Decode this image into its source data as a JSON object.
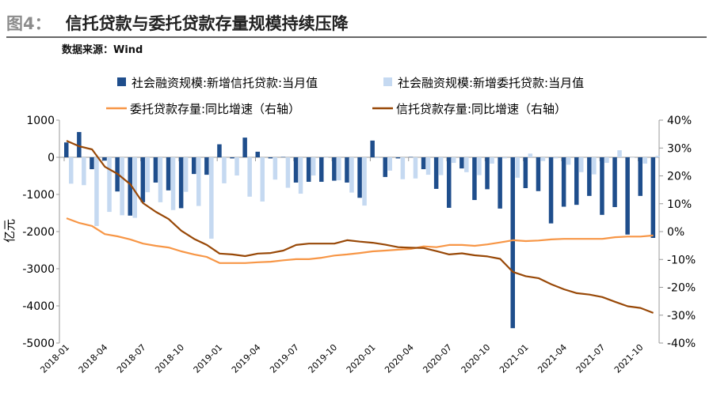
{
  "header": {
    "figure_label": "图4：",
    "title": "信托贷款与委托贷款存量规模持续压降",
    "source": "数据来源：Wind"
  },
  "chart_data": {
    "type": "bar+line",
    "categories": [
      "2018-01",
      "2018-02",
      "2018-03",
      "2018-04",
      "2018-05",
      "2018-06",
      "2018-07",
      "2018-08",
      "2018-09",
      "2018-10",
      "2018-11",
      "2018-12",
      "2019-01",
      "2019-02",
      "2019-03",
      "2019-04",
      "2019-05",
      "2019-06",
      "2019-07",
      "2019-08",
      "2019-09",
      "2019-10",
      "2019-11",
      "2019-12",
      "2020-01",
      "2020-02",
      "2020-03",
      "2020-04",
      "2020-05",
      "2020-06",
      "2020-07",
      "2020-08",
      "2020-09",
      "2020-10",
      "2020-11",
      "2020-12",
      "2021-01",
      "2021-02",
      "2021-03",
      "2021-04",
      "2021-05",
      "2021-06",
      "2021-07",
      "2021-08",
      "2021-09",
      "2021-10",
      "2021-11"
    ],
    "x_tick_labels": [
      "2018-01",
      "2018-04",
      "2018-07",
      "2018-10",
      "2019-01",
      "2019-04",
      "2019-07",
      "2019-10",
      "2020-01",
      "2020-04",
      "2020-07",
      "2020-10",
      "2021-01",
      "2021-04",
      "2021-07",
      "2021-10"
    ],
    "left_axis": {
      "label": "亿元",
      "range": [
        -5000,
        1000
      ],
      "ticks": [
        "1000",
        "0",
        "-1000",
        "-2000",
        "-3000",
        "-4000",
        "-5000"
      ]
    },
    "right_axis": {
      "range": [
        -40,
        40
      ],
      "ticks": [
        "40%",
        "30%",
        "20%",
        "10%",
        "0%",
        "-10%",
        "-20%",
        "-30%",
        "-40%"
      ]
    },
    "legend_position": "top",
    "series": [
      {
        "name": "社会融资规模:新增信托贷款:当月值",
        "type": "bar",
        "axis": "left",
        "color": "#1f4e8c",
        "values": [
          400,
          680,
          -320,
          -90,
          -920,
          -1570,
          -1210,
          -680,
          -890,
          -1370,
          -450,
          -470,
          350,
          -30,
          530,
          150,
          -30,
          10,
          -680,
          -660,
          -660,
          -630,
          -680,
          -1090,
          450,
          -530,
          -30,
          10,
          -320,
          -850,
          -1360,
          -300,
          -1150,
          -860,
          -1380,
          -4600,
          -830,
          -910,
          -1780,
          -1330,
          -1280,
          -1040,
          -1550,
          -1340,
          -2080,
          -1040,
          -2170
        ]
      },
      {
        "name": "社会融资规模:新增委托贷款:当月值",
        "type": "bar",
        "axis": "left",
        "color": "#c5d9f1",
        "values": [
          -710,
          -750,
          -1850,
          -1470,
          -1560,
          -1630,
          -940,
          -1210,
          -1420,
          -930,
          -1310,
          -2190,
          -700,
          -490,
          -1060,
          -1190,
          -600,
          -820,
          -980,
          -490,
          -10,
          -620,
          -950,
          -1300,
          -20,
          -360,
          -590,
          -570,
          -470,
          -480,
          -150,
          -400,
          -480,
          -170,
          -30,
          -550,
          100,
          -100,
          -30,
          -200,
          -400,
          -460,
          -150,
          190,
          0,
          -170,
          40
        ]
      },
      {
        "name": "委托贷款存量:同比增速（右轴）",
        "type": "line",
        "axis": "right",
        "color": "#f79646",
        "values": [
          4.8,
          3.1,
          2.0,
          -0.9,
          -1.7,
          -2.8,
          -4.3,
          -5.1,
          -5.7,
          -7.1,
          -8.2,
          -9.1,
          -11.3,
          -11.3,
          -11.3,
          -11.0,
          -10.8,
          -10.3,
          -9.9,
          -9.9,
          -9.4,
          -8.6,
          -8.2,
          -7.7,
          -7.1,
          -6.8,
          -6.5,
          -6.2,
          -5.3,
          -5.6,
          -4.8,
          -4.8,
          -5.1,
          -4.6,
          -3.9,
          -3.1,
          -3.4,
          -3.2,
          -2.8,
          -2.6,
          -2.6,
          -2.6,
          -2.6,
          -2.0,
          -1.8,
          -1.8,
          -1.4
        ]
      },
      {
        "name": "信托贷款存量:同比增速（右轴）",
        "type": "line",
        "axis": "right",
        "color": "#984807",
        "values": [
          32.6,
          30.6,
          29.5,
          23.3,
          20.7,
          17.0,
          10.2,
          7.1,
          4.5,
          0.3,
          -2.6,
          -4.8,
          -7.9,
          -8.2,
          -8.8,
          -7.9,
          -7.7,
          -6.8,
          -4.8,
          -4.3,
          -4.3,
          -4.3,
          -3.1,
          -3.6,
          -4.0,
          -4.7,
          -5.6,
          -5.8,
          -5.9,
          -7.0,
          -8.2,
          -7.8,
          -8.5,
          -8.9,
          -9.8,
          -14.5,
          -16.0,
          -16.7,
          -18.9,
          -20.7,
          -22.1,
          -22.6,
          -23.5,
          -25.2,
          -26.8,
          -27.4,
          -29.2
        ]
      }
    ]
  }
}
